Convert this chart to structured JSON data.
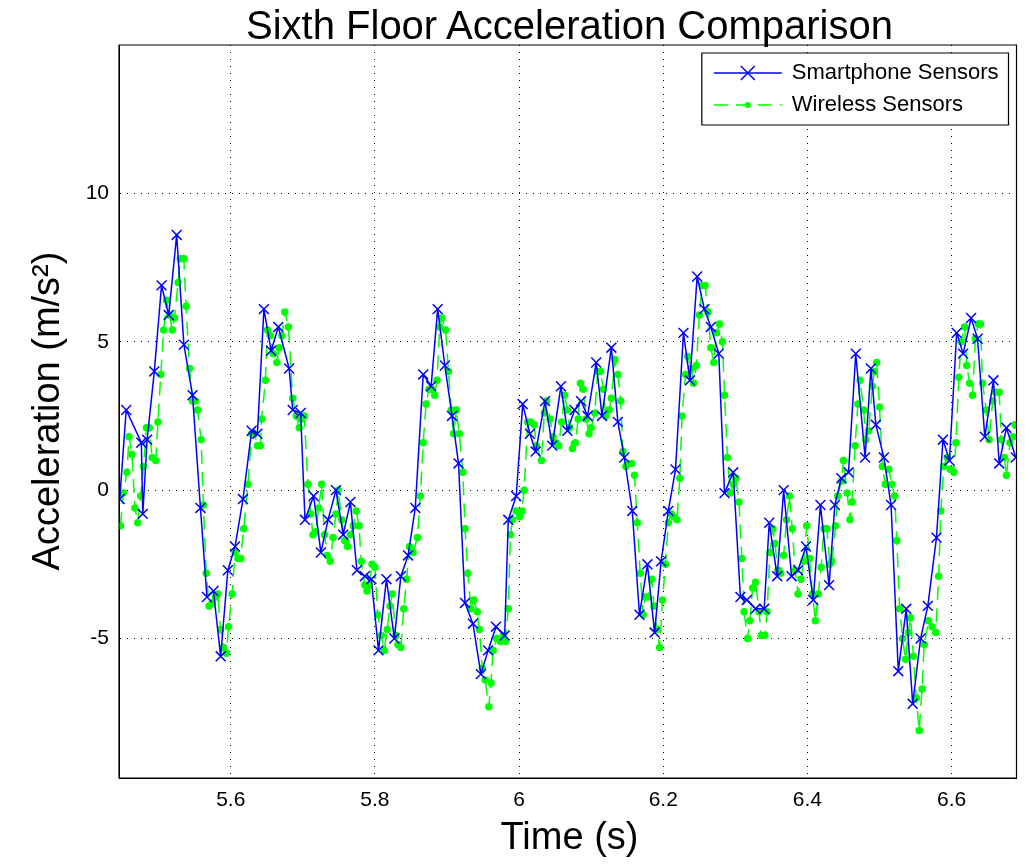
{
  "chart_data": {
    "type": "line",
    "title": "Sixth Floor Acceleration Comparison",
    "xlabel": "Time (s)",
    "ylabel": "Acceleration (m/s²)",
    "xlim": [
      5.445,
      6.69
    ],
    "xticks": [
      5.6,
      5.8,
      6,
      6.2,
      6.4,
      6.6
    ],
    "ylim": [
      -9.7,
      15
    ],
    "yticks": [
      -5,
      0,
      5,
      10
    ],
    "grid": true,
    "legend": "top right",
    "series": [
      {
        "name": "Smartphone Sensors",
        "color": "#0000ff",
        "type": "line",
        "marker": "cross",
        "line_style": "solid",
        "x": [
          5.446,
          5.455,
          5.476,
          5.478,
          5.484,
          5.494,
          5.504,
          5.514,
          5.525,
          5.535,
          5.547,
          5.558,
          5.567,
          5.576,
          5.586,
          5.596,
          5.606,
          5.617,
          5.629,
          5.637,
          5.646,
          5.656,
          5.666,
          5.681,
          5.686,
          5.697,
          5.703,
          5.715,
          5.725,
          5.735,
          5.746,
          5.756,
          5.766,
          5.775,
          5.786,
          5.795,
          5.805,
          5.816,
          5.827,
          5.836,
          5.846,
          5.856,
          5.867,
          5.878,
          5.887,
          5.897,
          5.907,
          5.916,
          5.925,
          5.936,
          5.947,
          5.957,
          5.968,
          5.98,
          5.985,
          5.996,
          6.005,
          6.015,
          6.023,
          6.036,
          6.046,
          6.058,
          6.067,
          6.077,
          6.086,
          6.095,
          6.107,
          6.115,
          6.128,
          6.137,
          6.146,
          6.157,
          6.167,
          6.178,
          6.188,
          6.197,
          6.207,
          6.217,
          6.228,
          6.237,
          6.247,
          6.257,
          6.266,
          6.277,
          6.285,
          6.297,
          6.307,
          6.316,
          6.328,
          6.34,
          6.347,
          6.358,
          6.367,
          6.378,
          6.387,
          6.398,
          6.408,
          6.418,
          6.43,
          6.438,
          6.447,
          6.457,
          6.467,
          6.48,
          6.488,
          6.495,
          6.506,
          6.516,
          6.526,
          6.537,
          6.546,
          6.557,
          6.567,
          6.579,
          6.588,
          6.597,
          6.607,
          6.616,
          6.627,
          6.636,
          6.646,
          6.658,
          6.666,
          6.676,
          6.689
        ],
        "values": [
          -0.3,
          2.7,
          1.6,
          -0.8,
          1.7,
          4.0,
          6.9,
          5.9,
          8.6,
          4.9,
          3.2,
          -0.6,
          -3.6,
          -3.4,
          -5.6,
          -2.7,
          -1.9,
          -0.3,
          2.0,
          1.9,
          6.1,
          4.7,
          5.5,
          4.1,
          2.7,
          2.6,
          -1.0,
          -0.2,
          -2.1,
          -1.0,
          0.0,
          -1.5,
          -0.4,
          -2.7,
          -2.9,
          -3.0,
          -5.4,
          -3.0,
          -5.0,
          -2.9,
          -2.2,
          -0.6,
          3.9,
          3.5,
          6.1,
          4.2,
          2.5,
          0.9,
          -3.8,
          -4.5,
          -6.2,
          -5.4,
          -4.6,
          -4.9,
          -1.0,
          -0.2,
          2.9,
          1.9,
          1.3,
          3.0,
          1.5,
          3.5,
          2.0,
          2.7,
          3.0,
          2.5,
          4.3,
          2.5,
          4.8,
          2.3,
          1.1,
          -0.7,
          -4.2,
          -2.5,
          -4.8,
          -2.4,
          -0.7,
          0.7,
          5.3,
          3.7,
          7.2,
          6.1,
          5.5,
          4.6,
          -0.1,
          0.6,
          -3.6,
          -3.7,
          -4.0,
          -4.0,
          -1.1,
          -2.9,
          0.0,
          -2.9,
          -2.7,
          -1.9,
          -3.7,
          -0.5,
          -3.2,
          -0.5,
          0.4,
          0.6,
          4.6,
          1.1,
          4.1,
          2.2,
          1.1,
          -0.5,
          -6.1,
          -4.0,
          -7.2,
          -5.0,
          -3.9,
          -1.6,
          1.7,
          1.0,
          5.3,
          4.6,
          5.8,
          5.1,
          1.8,
          3.7,
          0.9,
          2.1,
          1.1
        ]
      },
      {
        "name": "Wireless Sensors",
        "color": "#00ff00",
        "type": "line",
        "marker": "circle",
        "line_style": "dashed",
        "x": [
          5.447,
          5.451,
          5.456,
          5.459,
          5.463,
          5.467,
          5.471,
          5.475,
          5.479,
          5.483,
          5.487,
          5.491,
          5.496,
          5.499,
          5.503,
          5.507,
          5.511,
          5.515,
          5.519,
          5.522,
          5.527,
          5.53,
          5.535,
          5.538,
          5.543,
          5.547,
          5.551,
          5.554,
          5.559,
          5.562,
          5.566,
          5.57,
          5.574,
          5.579,
          5.582,
          5.586,
          5.59,
          5.594,
          5.597,
          5.602,
          5.606,
          5.61,
          5.614,
          5.618,
          5.624,
          5.629,
          5.633,
          5.637,
          5.641,
          5.643,
          5.648,
          5.651,
          5.655,
          5.659,
          5.664,
          5.667,
          5.671,
          5.675,
          5.68,
          5.686,
          5.691,
          5.695,
          5.698,
          5.702,
          5.707,
          5.711,
          5.714,
          5.718,
          5.722,
          5.726,
          5.73,
          5.734,
          5.738,
          5.742,
          5.746,
          5.749,
          5.754,
          5.758,
          5.762,
          5.766,
          5.77,
          5.774,
          5.778,
          5.781,
          5.786,
          5.789,
          5.792,
          5.796,
          5.8,
          5.804,
          5.809,
          5.813,
          5.817,
          5.821,
          5.824,
          5.829,
          5.832,
          5.836,
          5.84,
          5.844,
          5.848,
          5.853,
          5.859,
          5.863,
          5.867,
          5.871,
          5.875,
          5.879,
          5.883,
          5.886,
          5.89,
          5.893,
          5.898,
          5.902,
          5.906,
          5.909,
          5.913,
          5.917,
          5.922,
          5.925,
          5.929,
          5.933,
          5.937,
          5.942,
          5.945,
          5.949,
          5.953,
          5.958,
          5.961,
          5.964,
          5.969,
          5.974,
          5.978,
          5.981,
          5.985,
          5.988,
          5.991,
          5.996,
          6.001,
          6.004,
          6.007,
          6.012,
          6.016,
          6.021,
          6.024,
          6.031,
          6.035,
          6.038,
          6.043,
          6.047,
          6.051,
          6.055,
          6.059,
          6.063,
          6.067,
          6.07,
          6.074,
          6.078,
          6.082,
          6.085,
          6.089,
          6.093,
          6.097,
          6.1,
          6.105,
          6.109,
          6.113,
          6.117,
          6.12,
          6.125,
          6.128,
          6.133,
          6.137,
          6.141,
          6.144,
          6.148,
          6.152,
          6.156,
          6.16,
          6.164,
          6.168,
          6.172,
          6.175,
          6.179,
          6.184,
          6.187,
          6.191,
          6.195,
          6.199,
          6.203,
          6.207,
          6.211,
          6.215,
          6.219,
          6.223,
          6.226,
          6.231,
          6.234,
          6.239,
          6.242,
          6.246,
          6.25,
          6.254,
          6.258,
          6.262,
          6.266,
          6.27,
          6.274,
          6.278,
          6.282,
          6.285,
          6.289,
          6.293,
          6.297,
          6.301,
          6.305,
          6.309,
          6.312,
          6.317,
          6.32,
          6.324,
          6.328,
          6.333,
          6.336,
          6.341,
          6.344,
          6.348,
          6.352,
          6.355,
          6.359,
          6.363,
          6.367,
          6.371,
          6.375,
          6.379,
          6.383,
          6.387,
          6.391,
          6.395,
          6.399,
          6.403,
          6.407,
          6.411,
          6.415,
          6.419,
          6.423,
          6.427,
          6.431,
          6.434,
          6.439,
          6.442,
          6.447,
          6.45,
          6.455,
          6.459,
          6.462,
          6.466,
          6.47,
          6.473,
          6.478,
          6.481,
          6.485,
          6.49,
          6.493,
          6.496,
          6.5,
          6.504,
          6.508,
          6.513,
          6.517,
          6.521,
          6.524,
          6.528,
          6.532,
          6.536,
          6.54,
          6.543,
          6.547,
          6.551,
          6.555,
          6.559,
          6.562,
          6.568,
          6.573,
          6.578,
          6.582,
          6.585,
          6.589,
          6.594,
          6.598,
          6.603,
          6.606,
          6.61,
          6.613,
          6.618,
          6.621,
          6.625,
          6.629,
          6.633,
          6.637,
          6.64,
          6.643,
          6.648,
          6.652,
          6.657,
          6.661,
          6.666,
          6.669,
          6.673,
          6.676,
          6.681,
          6.685,
          6.688
        ],
        "values": [
          -1.2,
          -0.1,
          0.6,
          1.8,
          1.2,
          -0.6,
          -1.1,
          -0.2,
          0.8,
          2.1,
          2.1,
          1.1,
          1.0,
          2.3,
          3.9,
          5.4,
          6.4,
          5.9,
          5.4,
          5.8,
          7.0,
          7.8,
          7.8,
          6.2,
          4.1,
          3.0,
          3.0,
          2.7,
          1.7,
          -0.5,
          -2.8,
          -3.9,
          -3.8,
          -3.6,
          -3.5,
          -4.7,
          -5.3,
          -5.5,
          -4.6,
          -3.5,
          -2.1,
          -2.3,
          -2.3,
          -1.3,
          0.2,
          1.9,
          1.9,
          1.5,
          1.5,
          2.4,
          3.7,
          5.4,
          5.2,
          4.6,
          4.3,
          4.8,
          5.2,
          6.0,
          5.5,
          3.1,
          2.5,
          2.1,
          2.4,
          2.5,
          0.2,
          -0.8,
          -1.5,
          -1.4,
          -0.6,
          0.2,
          -1.5,
          -2.2,
          -2.4,
          -1.6,
          -0.8,
          0.0,
          -1.0,
          -1.7,
          -1.9,
          -1.5,
          -1.2,
          -0.7,
          -1.2,
          -2.4,
          -3.2,
          -3.4,
          -3.2,
          -2.5,
          -2.6,
          -4.2,
          -4.9,
          -5.4,
          -4.7,
          -3.9,
          -3.5,
          -4.9,
          -5.2,
          -5.3,
          -4.0,
          -3.0,
          -1.9,
          -2.1,
          -1.6,
          -0.2,
          1.6,
          2.9,
          3.4,
          3.4,
          3.2,
          3.7,
          5.5,
          5.8,
          5.4,
          4.0,
          2.7,
          1.9,
          2.7,
          1.9,
          0.6,
          -1.3,
          -2.8,
          -4.0,
          -3.7,
          -4.1,
          -4.7,
          -6.0,
          -6.4,
          -7.3,
          -6.5,
          -5.4,
          -5.0,
          -5.1,
          -4.9,
          -5.1,
          -4.0,
          -1.5,
          -1.0,
          -0.7,
          -0.9,
          -0.7,
          0.0,
          2.3,
          2.3,
          2.2,
          1.5,
          1.0,
          2.6,
          3.0,
          2.4,
          1.8,
          1.6,
          1.5,
          2.3,
          3.2,
          2.7,
          2.1,
          1.4,
          1.6,
          2.4,
          3.6,
          3.4,
          2.4,
          1.9,
          2.1,
          2.6,
          4.0,
          4.0,
          3.4,
          2.5,
          2.7,
          3.1,
          4.4,
          3.9,
          3.0,
          1.3,
          0.8,
          0.9,
          0.9,
          0.5,
          -1.1,
          -2.8,
          -4.2,
          -3.6,
          -3.6,
          -3.0,
          -3.9,
          -4.7,
          -5.3,
          -3.7,
          -2.5,
          -1.1,
          -0.8,
          -0.9,
          -1.0,
          0.4,
          2.5,
          3.9,
          4.5,
          4.1,
          3.6,
          4.2,
          5.9,
          6.9,
          6.9,
          6.0,
          4.8,
          4.3,
          5.3,
          5.6,
          5.0,
          3.2,
          1.1,
          -0.1,
          0.2,
          0.4,
          -0.4,
          -2.3,
          -4.1,
          -5.0,
          -4.4,
          -3.3,
          -3.1,
          -4.1,
          -4.9,
          -4.9,
          -4.1,
          -2.1,
          -1.3,
          -1.8,
          -2.7,
          -2.8,
          -2.2,
          -1.0,
          -0.2,
          -1.3,
          -2.7,
          -3.5,
          -3.0,
          -2.4,
          -1.2,
          -2.3,
          -3.5,
          -4.4,
          -3.5,
          -2.6,
          -1.3,
          -1.3,
          -2.5,
          -2.4,
          -1.2,
          -0.2,
          0.3,
          1.0,
          -0.1,
          -1.0,
          -0.4,
          1.5,
          2.9,
          3.7,
          2.7,
          1.7,
          2.0,
          3.5,
          4.0,
          4.3,
          2.8,
          0.8,
          0.2,
          0.7,
          0.2,
          -0.2,
          -1.7,
          -4.0,
          -5.0,
          -5.7,
          -4.8,
          -4.3,
          -5.6,
          -7.0,
          -8.1,
          -6.7,
          -5.2,
          -4.4,
          -4.6,
          -4.8,
          -2.9,
          -0.7,
          0.8,
          1.1,
          0.7,
          0.6,
          1.6,
          3.8,
          5.0,
          5.5,
          4.2,
          3.6,
          3.2,
          5.1,
          5.6,
          5.6,
          3.6,
          2.7,
          1.7,
          3.0,
          3.3,
          3.3,
          1.7,
          1.1,
          0.5,
          1.6,
          1.8,
          2.2
        ]
      }
    ]
  }
}
